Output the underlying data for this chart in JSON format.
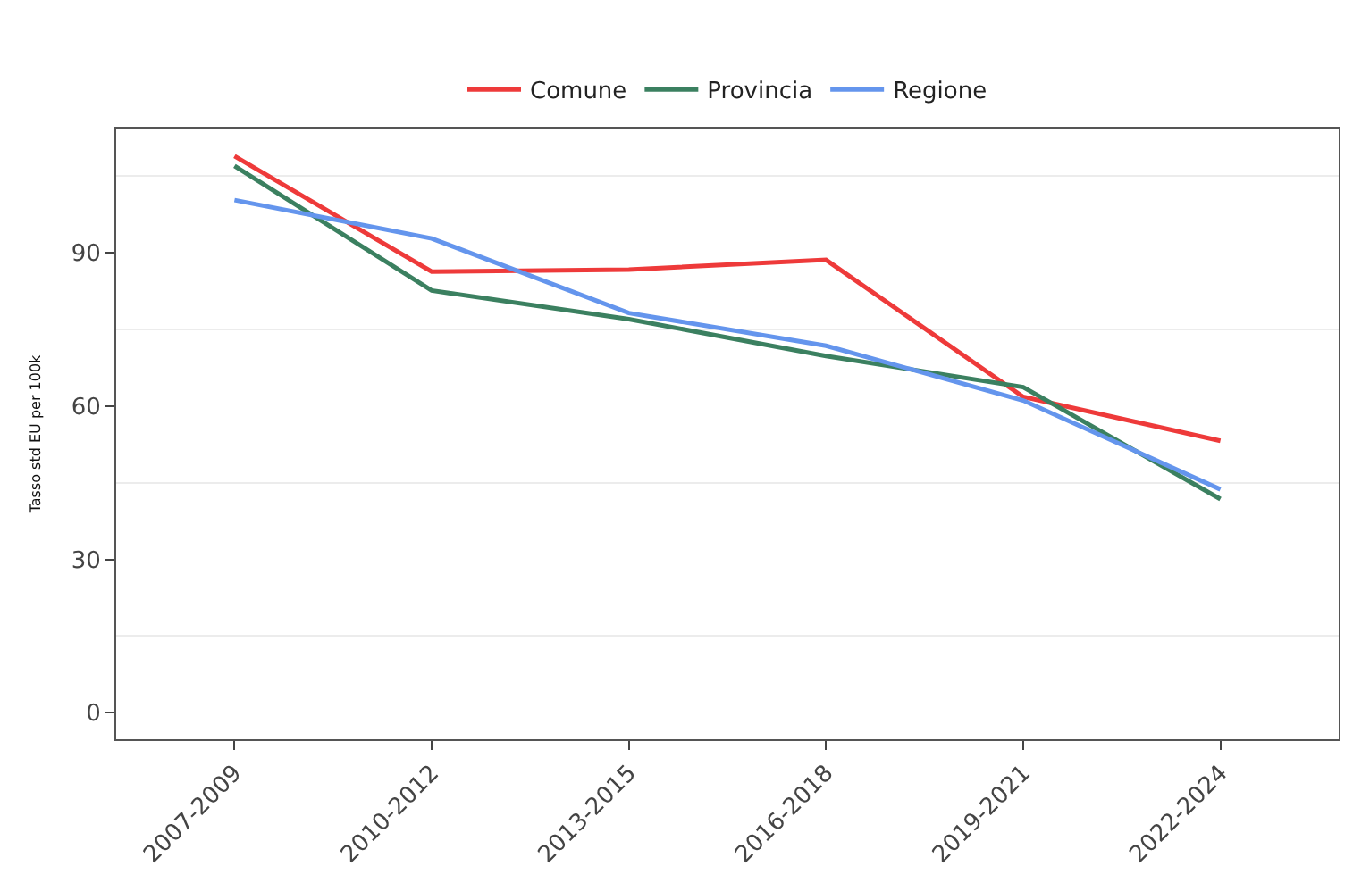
{
  "chart_data": {
    "type": "line",
    "ylabel": "Tasso std EU per 100k",
    "categories": [
      "2007-2009",
      "2010-2012",
      "2013-2015",
      "2016-2018",
      "2019-2021",
      "2022-2024"
    ],
    "series": [
      {
        "name": "Comune",
        "color": "#ee3a3a",
        "values": [
          108.9,
          86.3,
          86.7,
          88.6,
          61.8,
          53.2
        ]
      },
      {
        "name": "Provincia",
        "color": "#3b8060",
        "values": [
          107,
          82.6,
          77,
          69.8,
          63.7,
          41.8
        ]
      },
      {
        "name": "Regione",
        "color": "#6495ed",
        "values": [
          100.3,
          92.8,
          78.2,
          71.8,
          61.1,
          43.7
        ]
      }
    ],
    "ylim": [
      -5.2,
      114.3
    ],
    "yticks": [
      0,
      30,
      60,
      90
    ],
    "grid": "y",
    "legend": "top",
    "marker": "none",
    "line_style": "solid"
  }
}
